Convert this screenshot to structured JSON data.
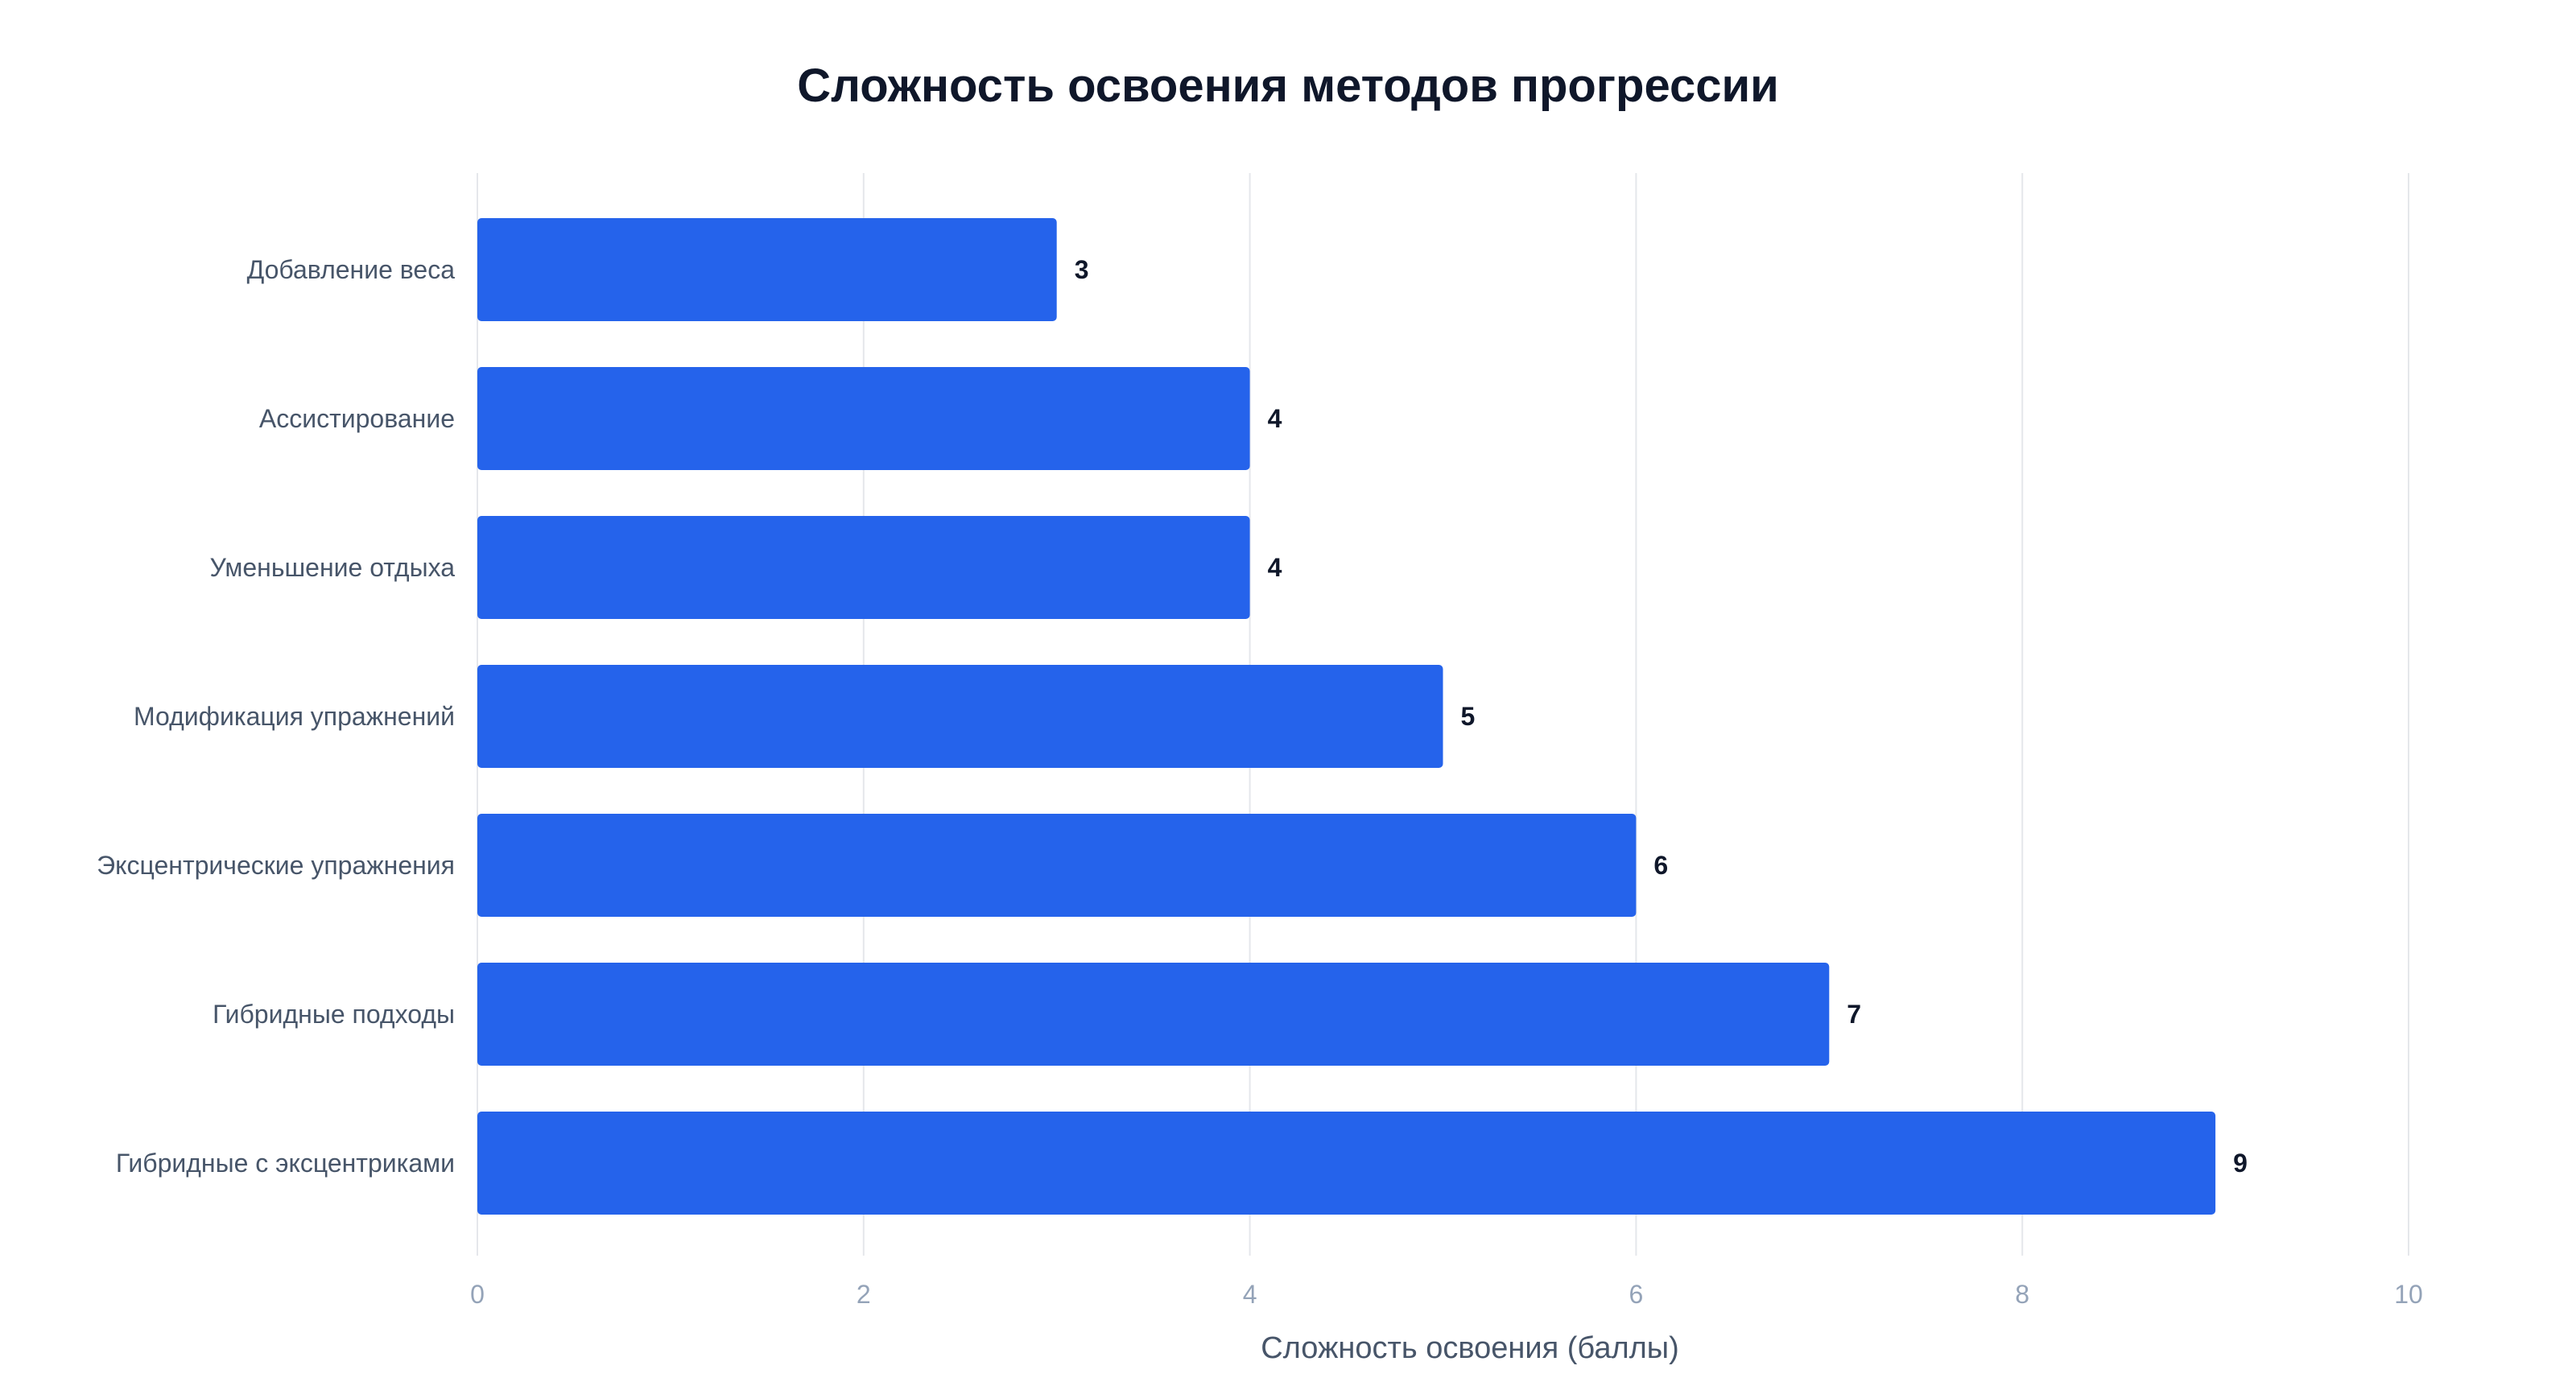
{
  "chart_data": {
    "type": "bar",
    "orientation": "horizontal",
    "title": "Сложность освоения методов прогрессии",
    "xlabel": "Сложность освоения (баллы)",
    "ylabel": "",
    "categories": [
      "Добавление веса",
      "Ассистирование",
      "Уменьшение отдыха",
      "Модификация упражнений",
      "Эксцентрические упражнения",
      "Гибридные подходы",
      "Гибридные с эксцентриками"
    ],
    "values": [
      3,
      4,
      4,
      5,
      6,
      7,
      9
    ],
    "xlim": [
      0,
      10
    ],
    "xticks": [
      0,
      2,
      4,
      6,
      8,
      10
    ],
    "data_labels": true,
    "grid": "vertical",
    "legend": "none",
    "colors": {
      "bar": "#2563eb",
      "grid": "#e5e7eb",
      "title": "#0f172a",
      "category_text": "#475569",
      "tick_text": "#94a3b8",
      "value_text": "#0f172a"
    }
  }
}
